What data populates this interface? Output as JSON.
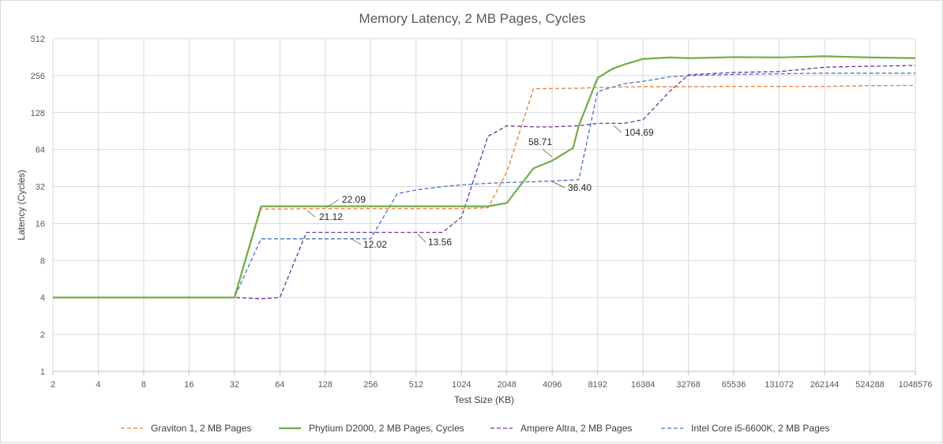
{
  "chart_data": {
    "type": "line",
    "title": "Memory Latency, 2 MB Pages, Cycles",
    "xlabel": "Test Size (KB)",
    "ylabel": "Latency (Cycles)",
    "x_scale": "log2",
    "y_scale": "log2",
    "xlim": [
      2,
      1048576
    ],
    "ylim": [
      1,
      512
    ],
    "x_ticks": [
      "2",
      "4",
      "8",
      "16",
      "32",
      "64",
      "128",
      "256",
      "512",
      "1024",
      "2048",
      "4096",
      "8192",
      "16384",
      "32768",
      "65536",
      "131072",
      "262144",
      "524288",
      "1048576"
    ],
    "y_ticks": [
      "1",
      "2",
      "4",
      "8",
      "16",
      "32",
      "64",
      "128",
      "256",
      "512"
    ],
    "grid": true,
    "legend_position": "bottom",
    "series": [
      {
        "name": "Graviton 1, 2 MB Pages",
        "color": "#ed7d31",
        "dash": true,
        "points": [
          [
            2,
            4
          ],
          [
            4,
            4
          ],
          [
            8,
            4
          ],
          [
            16,
            4
          ],
          [
            32,
            4
          ],
          [
            48,
            21
          ],
          [
            64,
            21
          ],
          [
            96,
            21.12
          ],
          [
            128,
            21.12
          ],
          [
            192,
            21.12
          ],
          [
            256,
            21.12
          ],
          [
            384,
            21.12
          ],
          [
            512,
            21.12
          ],
          [
            768,
            21.12
          ],
          [
            1024,
            21.12
          ],
          [
            1536,
            21.5
          ],
          [
            2048,
            42
          ],
          [
            3072,
            200
          ],
          [
            4096,
            201
          ],
          [
            6144,
            202
          ],
          [
            8192,
            205
          ],
          [
            12288,
            207
          ],
          [
            16384,
            208
          ],
          [
            24576,
            208
          ],
          [
            32768,
            208
          ],
          [
            65536,
            209
          ],
          [
            131072,
            209
          ],
          [
            262144,
            209
          ],
          [
            524288,
            212
          ],
          [
            1048576,
            213
          ]
        ]
      },
      {
        "name": "Phytium D2000, 2 MB Pages, Cycles",
        "color": "#70ad47",
        "dash": false,
        "points": [
          [
            2,
            4
          ],
          [
            4,
            4
          ],
          [
            8,
            4
          ],
          [
            16,
            4
          ],
          [
            32,
            4
          ],
          [
            48,
            22.09
          ],
          [
            64,
            22.09
          ],
          [
            96,
            22.09
          ],
          [
            128,
            22.09
          ],
          [
            192,
            22.09
          ],
          [
            256,
            22.09
          ],
          [
            384,
            22.09
          ],
          [
            512,
            22.09
          ],
          [
            768,
            22.09
          ],
          [
            1024,
            22.09
          ],
          [
            1536,
            22.09
          ],
          [
            2048,
            23.5
          ],
          [
            3072,
            45
          ],
          [
            4096,
            52
          ],
          [
            5632,
            66
          ],
          [
            6144,
            100
          ],
          [
            8192,
            245
          ],
          [
            10240,
            290
          ],
          [
            12288,
            315
          ],
          [
            16384,
            350
          ],
          [
            24576,
            360
          ],
          [
            32768,
            355
          ],
          [
            65536,
            362
          ],
          [
            131072,
            360
          ],
          [
            262144,
            368
          ],
          [
            524288,
            360
          ],
          [
            1048576,
            355
          ]
        ]
      },
      {
        "name": "Ampere Altra, 2 MB Pages",
        "color": "#7030a0",
        "dash": true,
        "points": [
          [
            2,
            4
          ],
          [
            4,
            4
          ],
          [
            8,
            4
          ],
          [
            16,
            4
          ],
          [
            32,
            4
          ],
          [
            48,
            3.9
          ],
          [
            64,
            4
          ],
          [
            96,
            13.56
          ],
          [
            128,
            13.56
          ],
          [
            192,
            13.56
          ],
          [
            256,
            13.56
          ],
          [
            384,
            13.56
          ],
          [
            512,
            13.56
          ],
          [
            768,
            13.56
          ],
          [
            1024,
            18
          ],
          [
            1536,
            82
          ],
          [
            2048,
            100
          ],
          [
            3072,
            98
          ],
          [
            4096,
            98
          ],
          [
            6144,
            100
          ],
          [
            8192,
            104.69
          ],
          [
            12288,
            104.69
          ],
          [
            16384,
            112
          ],
          [
            24576,
            190
          ],
          [
            32768,
            260
          ],
          [
            65536,
            272
          ],
          [
            131072,
            276
          ],
          [
            262144,
            300
          ],
          [
            524288,
            305
          ],
          [
            1048576,
            310
          ]
        ]
      },
      {
        "name": "Intel Core i5-6600K, 2 MB Pages",
        "color": "#4472c4",
        "dash": true,
        "points": [
          [
            2,
            4
          ],
          [
            4,
            4
          ],
          [
            8,
            4
          ],
          [
            16,
            4
          ],
          [
            32,
            4
          ],
          [
            48,
            12.02
          ],
          [
            64,
            12.02
          ],
          [
            96,
            12.02
          ],
          [
            128,
            12.02
          ],
          [
            192,
            12.02
          ],
          [
            256,
            12.02
          ],
          [
            384,
            28
          ],
          [
            512,
            30
          ],
          [
            768,
            32
          ],
          [
            1024,
            33
          ],
          [
            1536,
            34
          ],
          [
            2048,
            34.5
          ],
          [
            3072,
            35
          ],
          [
            4096,
            35.5
          ],
          [
            6144,
            36.4
          ],
          [
            8192,
            190
          ],
          [
            12288,
            220
          ],
          [
            16384,
            230
          ],
          [
            24576,
            250
          ],
          [
            32768,
            256
          ],
          [
            65536,
            262
          ],
          [
            131072,
            265
          ],
          [
            262144,
            268
          ],
          [
            524288,
            268
          ],
          [
            1048576,
            268
          ]
        ]
      }
    ],
    "annotations": [
      {
        "label": "22.09",
        "series": "Phytium D2000, 2 MB Pages, Cycles",
        "x": 160,
        "y": 22.09
      },
      {
        "label": "21.12",
        "series": "Graviton 1, 2 MB Pages",
        "x": 96,
        "y": 21.12
      },
      {
        "label": "12.02",
        "series": "Intel Core i5-6600K, 2 MB Pages",
        "x": 220,
        "y": 12.02
      },
      {
        "label": "13.56",
        "series": "Ampere Altra, 2 MB Pages",
        "x": 512,
        "y": 13.56
      },
      {
        "label": "58.71",
        "series": "Phytium D2000, 2 MB Pages, Cycles",
        "x": 4096,
        "y": 52
      },
      {
        "label": "36.40",
        "series": "Intel Core i5-6600K, 2 MB Pages",
        "x": 4096,
        "y": 35.5
      },
      {
        "label": "104.69",
        "series": "Ampere Altra, 2 MB Pages",
        "x": 8192,
        "y": 104.69
      }
    ]
  }
}
